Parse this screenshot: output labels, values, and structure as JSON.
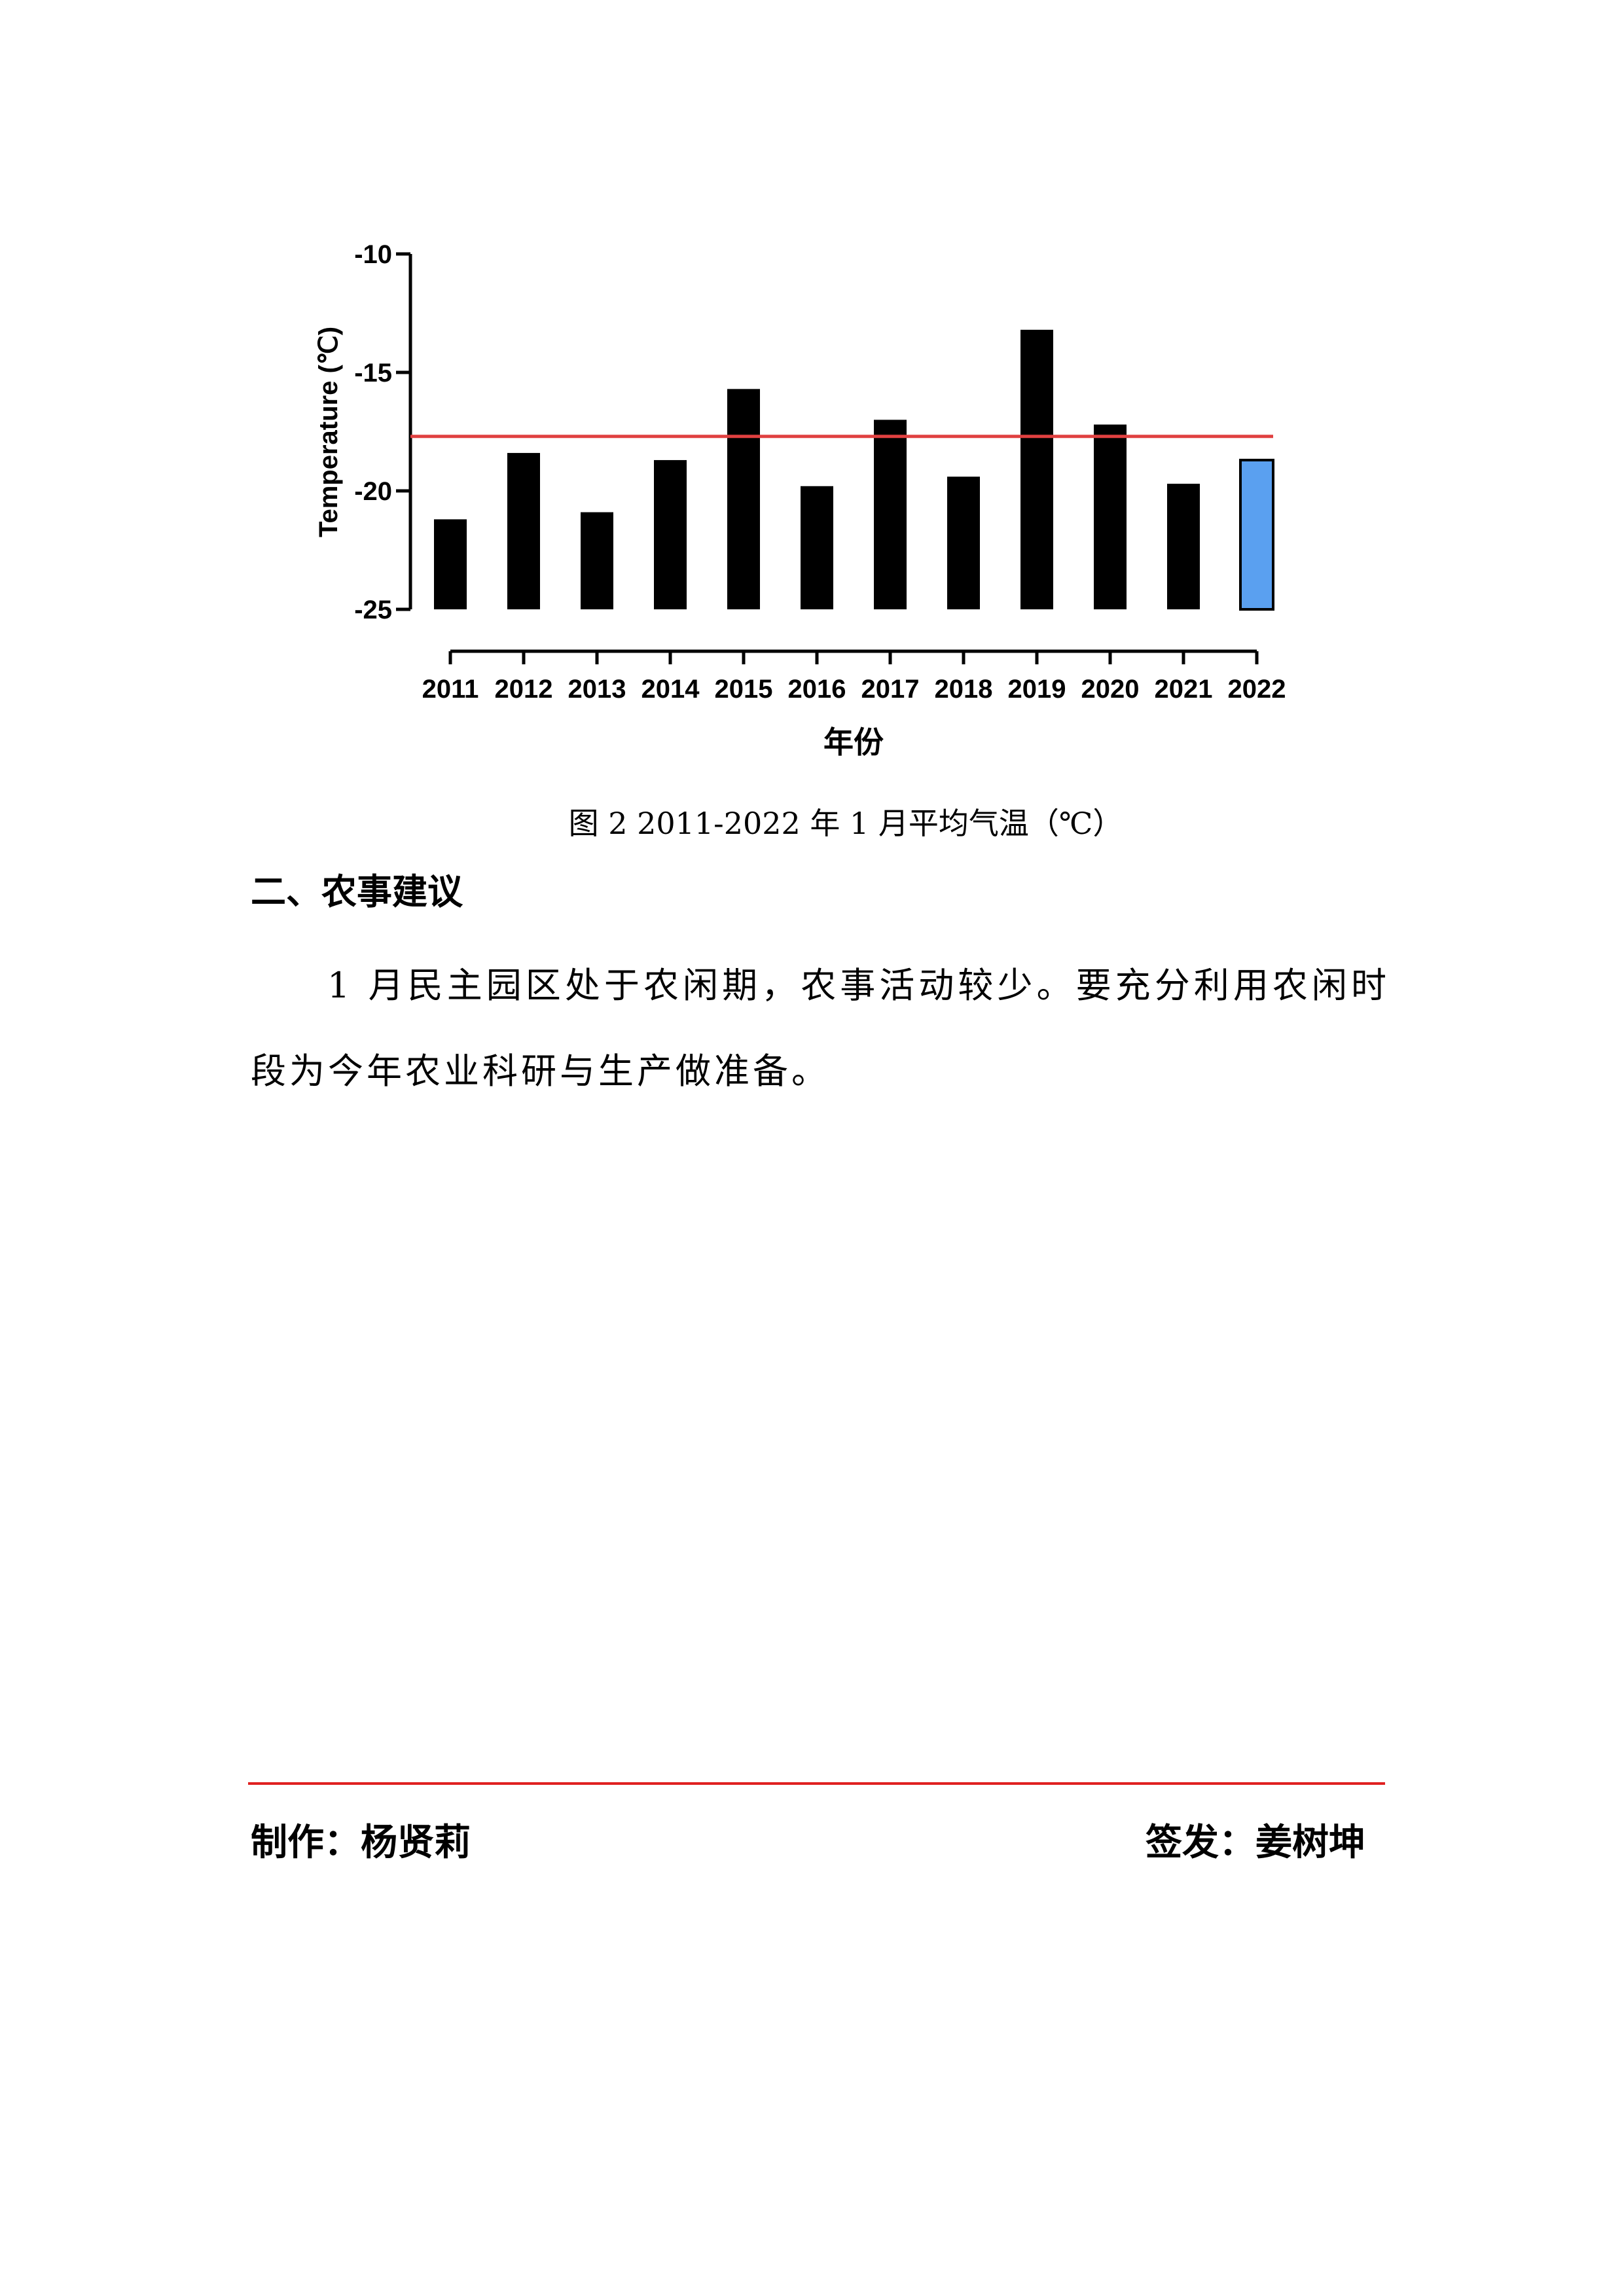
{
  "chart_data": {
    "type": "bar",
    "title": "",
    "xlabel": "年份",
    "ylabel": "Temperature (℃)",
    "categories": [
      "2011",
      "2012",
      "2013",
      "2014",
      "2015",
      "2016",
      "2017",
      "2018",
      "2019",
      "2020",
      "2021",
      "2022"
    ],
    "values": [
      -21.2,
      -18.4,
      -20.9,
      -18.7,
      -15.7,
      -19.8,
      -17.0,
      -19.4,
      -13.2,
      -17.2,
      -19.7,
      -18.7
    ],
    "baseline": -25,
    "ylim": [
      -25,
      -10
    ],
    "yticks": [
      -10,
      -15,
      -20,
      -25
    ],
    "reference_line": -17.7,
    "colors": {
      "bar": "#000000",
      "highlight_bar": "#5aa0f0",
      "highlight_category": "2022",
      "reference_line": "#e04040"
    },
    "grid": false
  },
  "caption": "图 2  2011-2022 年 1 月平均气温（℃）",
  "section": {
    "heading": "二、农事建议",
    "paragraph": "1 月民主园区处于农闲期，农事活动较少。要充分利用农闲时段为今年农业科研与生产做准备。"
  },
  "footer": {
    "author": "制作：杨贤莉",
    "issuer": "签发：姜树坤"
  }
}
